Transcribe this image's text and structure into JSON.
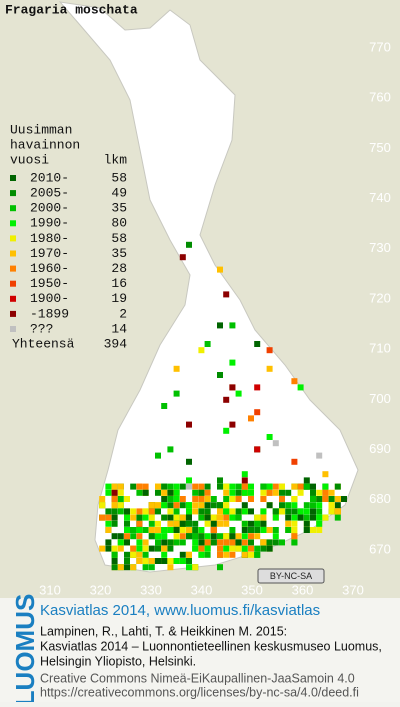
{
  "title": "Fragaria moschata",
  "legend": {
    "heading": [
      "Uusimman",
      "havainnon",
      "vuosi"
    ],
    "count_heading": "lkm",
    "items": [
      {
        "label": "2010-",
        "count": 58,
        "color": "#006400"
      },
      {
        "label": "2005-",
        "count": 49,
        "color": "#008c00"
      },
      {
        "label": "2000-",
        "count": 35,
        "color": "#00c000"
      },
      {
        "label": "1990-",
        "count": 80,
        "color": "#00f000"
      },
      {
        "label": "1980-",
        "count": 58,
        "color": "#f0f000"
      },
      {
        "label": "1970-",
        "count": 35,
        "color": "#ffc000"
      },
      {
        "label": "1960-",
        "count": 28,
        "color": "#ff8000"
      },
      {
        "label": "1950-",
        "count": 16,
        "color": "#f04000"
      },
      {
        "label": "1900-",
        "count": 19,
        "color": "#d00000"
      },
      {
        "label": "-1899",
        "count": 2,
        "color": "#8c0000"
      },
      {
        "label": "???",
        "count": 14,
        "color": "#c0c0c0"
      }
    ],
    "total_label": "Yhteensä",
    "total": 394
  },
  "grid": {
    "north": [
      770,
      760,
      750,
      740,
      730,
      720,
      710,
      700,
      690,
      680,
      670
    ],
    "east": [
      310,
      320,
      330,
      340,
      350,
      360,
      370
    ]
  },
  "license_badge": "BY-NC-SA",
  "footer": {
    "logo": "LUOMUS",
    "source": "Kasviatlas 2014, www.luomus.fi/kasviatlas",
    "citation": [
      "Lampinen, R., Lahti, T. & Heikkinen M. 2015:",
      "Kasviatlas 2014 – Luonnontieteellinen keskusmuseo Luomus,",
      "Helsingin Yliopisto, Helsinki."
    ],
    "license": [
      "Creative Commons Nimeä-EiKaupallinen-JaaSamoin 4.0",
      "https://creativecommons.org/licenses/by-nc-sa/4.0/deed.fi"
    ]
  }
}
